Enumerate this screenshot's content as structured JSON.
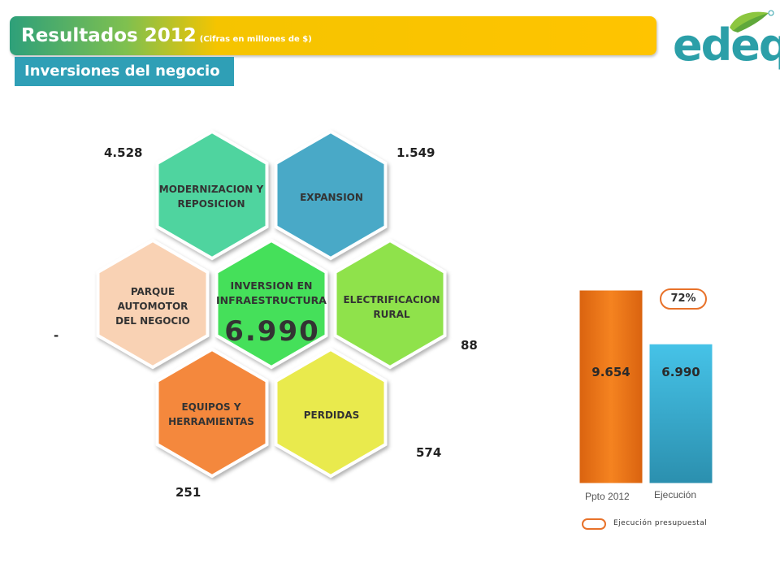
{
  "header": {
    "title": "Resultados 2012",
    "title_note": "(Cifras en millones de $)",
    "section": "Inversiones del negocio"
  },
  "logo": {
    "text": "edeq",
    "mark": "®"
  },
  "chart_data": [
    {
      "type": "diagram",
      "center": {
        "label_line1": "INVERSION EN",
        "label_line2": "INFRAESTRUCTURA",
        "value": "6.990",
        "color": "#44e05a"
      },
      "segments": [
        {
          "name_line1": "MODERNIZACION Y",
          "name_line2": "REPOSICION",
          "value": "4.528",
          "color": "#4fd49f"
        },
        {
          "name_line1": "EXPANSION",
          "name_line2": "",
          "value": "1.549",
          "color": "#48a9c7"
        },
        {
          "name_line1": "ELECTRIFICACION",
          "name_line2": "RURAL",
          "value": "88",
          "color": "#8fe24c"
        },
        {
          "name_line1": "PERDIDAS",
          "name_line2": "",
          "value": "574",
          "color": "#e9ea4d"
        },
        {
          "name_line1": "EQUIPOS Y",
          "name_line2": "HERRAMIENTAS",
          "value": "251",
          "color": "#f4883d"
        },
        {
          "name_line1": "PARQUE",
          "name_line2": "AUTOMOTOR",
          "name_line3": "DEL NEGOCIO",
          "value": "-",
          "color": "#f9d2b4"
        }
      ]
    },
    {
      "type": "bar",
      "categories": [
        "Ppto 2012",
        "Ejecución"
      ],
      "values": [
        9654,
        6990
      ],
      "value_labels": [
        "9.654",
        "6.990"
      ],
      "colors": [
        "#f07a1a",
        "#34a8c9"
      ],
      "ylim": [
        0,
        9654
      ],
      "execution_percent": "72%",
      "legend": "Ejecución presupuestal"
    }
  ]
}
